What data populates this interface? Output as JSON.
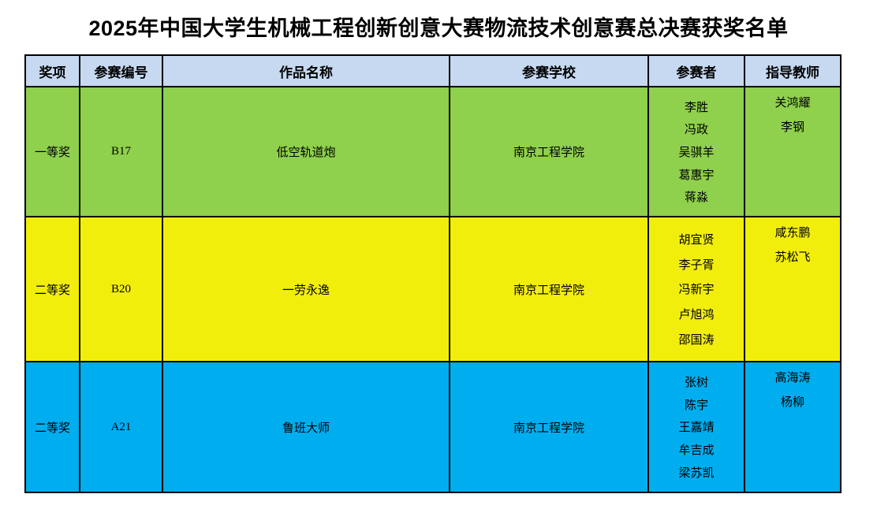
{
  "title": "2025年中国大学生机械工程创新创意大赛物流技术创意赛总决赛获奖名单",
  "table": {
    "headers": [
      "奖项",
      "参赛编号",
      "作品名称",
      "参赛学校",
      "参赛者",
      "指导教师"
    ],
    "colors": {
      "header_bg": "#C6D9F1",
      "border": "#000000",
      "first_prize_row": "#8FD04C",
      "second_prize_row_1": "#F2EE0B",
      "second_prize_row_2": "#00AEEF"
    },
    "rows": [
      {
        "award": "一等奖",
        "entry_no": "B17",
        "work": "低空轨道炮",
        "school": "南京工程学院",
        "participants": [
          "李胜",
          "冯政",
          "吴骐羊",
          "葛惠宇",
          "蒋淼"
        ],
        "advisors": [
          "关鸿耀",
          "李钢"
        ],
        "color": "#8FD04C"
      },
      {
        "award": "二等奖",
        "entry_no": "B20",
        "work": "一劳永逸",
        "school": "南京工程学院",
        "participants": [
          "胡宜贤",
          "李子胥",
          "冯新宇",
          "卢旭鸿",
          "邵国涛"
        ],
        "advisors": [
          "咸东鹏",
          "苏松飞"
        ],
        "color": "#F2EE0B"
      },
      {
        "award": "二等奖",
        "entry_no": "A21",
        "work": "鲁班大师",
        "school": "南京工程学院",
        "participants": [
          "张树",
          "陈宇",
          "王嘉靖",
          "牟吉成",
          "梁苏凯"
        ],
        "advisors": [
          "高海涛",
          "杨柳"
        ],
        "color": "#00AEEF"
      }
    ]
  }
}
